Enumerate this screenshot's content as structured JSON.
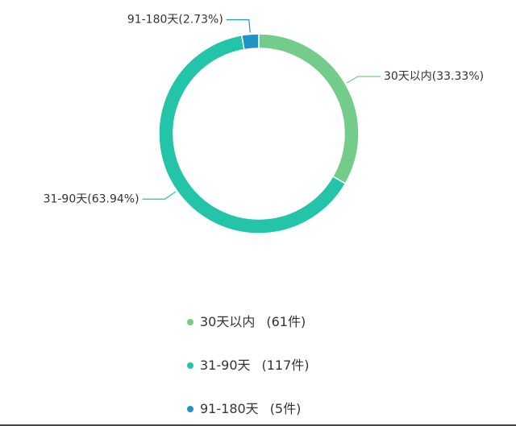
{
  "chart_data": {
    "type": "pie",
    "categories": [
      "30天以内",
      "31-90天",
      "91-180天"
    ],
    "values": [
      61,
      117,
      5
    ],
    "value_labels": [
      "(61件)",
      "(117件)",
      "(5件)"
    ],
    "slice_labels": [
      "30天以内(33.33%)",
      "31-90天(63.94%)",
      "91-180天(2.73%)"
    ],
    "colors": [
      "#73cc89",
      "#24c4a8",
      "#1f94c8"
    ],
    "donut": true
  }
}
